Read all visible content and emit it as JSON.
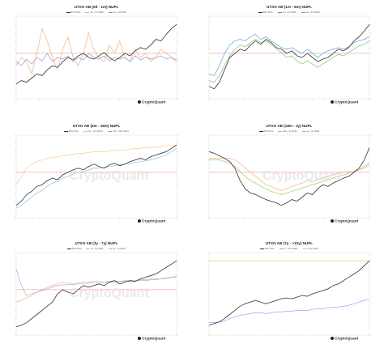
{
  "chart_data": [
    {
      "type": "line",
      "title": "UTXO AB (0d - 1m) NUPL",
      "legend": [
        "BTC Price",
        "0d - 1m NUPL",
        "1m - 1d NUPL"
      ],
      "series_colors": [
        "#333333",
        "#f4a460",
        "#8a7fd6"
      ],
      "ref_line": true,
      "watermark": false,
      "brand": "CryptoQuant",
      "series": [
        {
          "name": "BTC Price",
          "values": [
            0.18,
            0.22,
            0.2,
            0.25,
            0.3,
            0.28,
            0.35,
            0.4,
            0.38,
            0.45,
            0.5,
            0.47,
            0.52,
            0.55,
            0.5,
            0.48,
            0.52,
            0.56,
            0.5,
            0.46,
            0.5,
            0.55,
            0.52,
            0.58,
            0.62,
            0.6,
            0.65,
            0.72,
            0.7,
            0.78,
            0.85,
            0.9
          ]
        },
        {
          "name": "0d - 1m NUPL",
          "values": [
            0.4,
            0.5,
            0.45,
            0.3,
            0.55,
            0.85,
            0.7,
            0.5,
            0.35,
            0.6,
            0.75,
            0.5,
            0.4,
            0.55,
            0.8,
            0.6,
            0.5,
            0.45,
            0.65,
            0.55,
            0.7,
            0.5,
            0.45,
            0.6,
            0.5,
            0.55,
            0.45,
            0.5,
            0.6,
            0.55,
            0.5,
            0.45
          ]
        },
        {
          "name": "1m - 1d NUPL",
          "values": [
            0.45,
            0.4,
            0.48,
            0.42,
            0.5,
            0.46,
            0.55,
            0.45,
            0.5,
            0.48,
            0.52,
            0.45,
            0.5,
            0.47,
            0.55,
            0.5,
            0.48,
            0.52,
            0.46,
            0.5,
            0.48,
            0.5,
            0.45,
            0.52,
            0.47,
            0.5,
            0.48,
            0.5,
            0.52,
            0.48,
            0.5,
            0.47
          ]
        }
      ]
    },
    {
      "type": "line",
      "title": "UTXO AB (1m - 6m) NUPL",
      "legend": [
        "BTC Price",
        "1m - 3m NUPL",
        "3m - 6m NUPL"
      ],
      "series_colors": [
        "#333333",
        "#4a90d9",
        "#66bb6a"
      ],
      "ref_line": true,
      "watermark": false,
      "brand": "CryptoQuant",
      "series": [
        {
          "name": "BTC Price",
          "values": [
            0.15,
            0.12,
            0.2,
            0.35,
            0.5,
            0.55,
            0.6,
            0.58,
            0.65,
            0.7,
            0.66,
            0.72,
            0.68,
            0.62,
            0.6,
            0.55,
            0.58,
            0.52,
            0.5,
            0.55,
            0.5,
            0.45,
            0.48,
            0.5,
            0.55,
            0.6,
            0.58,
            0.62,
            0.7,
            0.75,
            0.82,
            0.9
          ]
        },
        {
          "name": "1m - 3m NUPL",
          "values": [
            0.3,
            0.28,
            0.4,
            0.55,
            0.65,
            0.7,
            0.72,
            0.7,
            0.75,
            0.78,
            0.72,
            0.75,
            0.7,
            0.66,
            0.62,
            0.6,
            0.62,
            0.58,
            0.55,
            0.6,
            0.55,
            0.5,
            0.55,
            0.58,
            0.6,
            0.62,
            0.6,
            0.63,
            0.68,
            0.7,
            0.72,
            0.75
          ]
        },
        {
          "name": "3m - 6m NUPL",
          "values": [
            0.22,
            0.2,
            0.28,
            0.4,
            0.52,
            0.6,
            0.65,
            0.63,
            0.68,
            0.72,
            0.68,
            0.7,
            0.66,
            0.6,
            0.56,
            0.5,
            0.52,
            0.46,
            0.42,
            0.46,
            0.42,
            0.38,
            0.42,
            0.46,
            0.5,
            0.54,
            0.52,
            0.56,
            0.6,
            0.64,
            0.66,
            0.7
          ]
        }
      ]
    },
    {
      "type": "line",
      "title": "UTXO AB (6m - 18m) NUPL",
      "legend": [
        "BTC Price",
        "6m - 12m NUPL",
        "12m - 18m NUPL"
      ],
      "series_colors": [
        "#333333",
        "#f6c27a",
        "#6fb6e8"
      ],
      "ref_line": true,
      "watermark": true,
      "brand": "CryptoQuant",
      "series": [
        {
          "name": "BTC Price",
          "values": [
            0.15,
            0.2,
            0.28,
            0.32,
            0.38,
            0.4,
            0.45,
            0.48,
            0.46,
            0.52,
            0.55,
            0.58,
            0.6,
            0.58,
            0.62,
            0.65,
            0.62,
            0.6,
            0.64,
            0.66,
            0.63,
            0.65,
            0.68,
            0.7,
            0.72,
            0.7,
            0.74,
            0.76,
            0.78,
            0.8,
            0.84,
            0.88
          ]
        },
        {
          "name": "6m - 12m NUPL",
          "values": [
            0.4,
            0.5,
            0.6,
            0.65,
            0.68,
            0.7,
            0.72,
            0.73,
            0.74,
            0.75,
            0.76,
            0.77,
            0.78,
            0.78,
            0.79,
            0.8,
            0.8,
            0.8,
            0.81,
            0.82,
            0.82,
            0.82,
            0.83,
            0.84,
            0.84,
            0.85,
            0.85,
            0.86,
            0.86,
            0.87,
            0.88,
            0.88
          ]
        },
        {
          "name": "12m - 18m NUPL",
          "values": [
            0.12,
            0.15,
            0.2,
            0.25,
            0.3,
            0.33,
            0.38,
            0.42,
            0.44,
            0.48,
            0.5,
            0.53,
            0.55,
            0.56,
            0.58,
            0.6,
            0.6,
            0.61,
            0.62,
            0.63,
            0.64,
            0.65,
            0.66,
            0.67,
            0.68,
            0.69,
            0.7,
            0.72,
            0.74,
            0.76,
            0.8,
            0.84
          ]
        }
      ]
    },
    {
      "type": "line",
      "title": "UTXO AB (18m - 3y) NUPL",
      "legend": [
        "BTC Price",
        "18m - 2y NUPL",
        "2y - 3y NUPL"
      ],
      "series_colors": [
        "#333333",
        "#f6a36d",
        "#8bc34a"
      ],
      "ref_line": true,
      "watermark": true,
      "brand": "CryptoQuant",
      "series": [
        {
          "name": "BTC Price",
          "values": [
            0.8,
            0.78,
            0.75,
            0.72,
            0.68,
            0.6,
            0.45,
            0.35,
            0.3,
            0.28,
            0.25,
            0.22,
            0.2,
            0.18,
            0.15,
            0.18,
            0.22,
            0.2,
            0.25,
            0.3,
            0.28,
            0.35,
            0.4,
            0.38,
            0.42,
            0.45,
            0.48,
            0.5,
            0.55,
            0.6,
            0.7,
            0.85
          ]
        },
        {
          "name": "18m - 2y NUPL",
          "values": [
            0.72,
            0.72,
            0.72,
            0.72,
            0.72,
            0.7,
            0.66,
            0.6,
            0.55,
            0.5,
            0.45,
            0.4,
            0.38,
            0.35,
            0.33,
            0.35,
            0.38,
            0.4,
            0.42,
            0.45,
            0.44,
            0.46,
            0.48,
            0.5,
            0.52,
            0.54,
            0.55,
            0.56,
            0.56,
            0.58,
            0.6,
            0.64
          ]
        },
        {
          "name": "2y - 3y NUPL",
          "values": [
            0.7,
            0.7,
            0.7,
            0.68,
            0.66,
            0.62,
            0.56,
            0.5,
            0.45,
            0.42,
            0.38,
            0.35,
            0.32,
            0.3,
            0.28,
            0.3,
            0.32,
            0.34,
            0.36,
            0.38,
            0.4,
            0.42,
            0.44,
            0.46,
            0.48,
            0.5,
            0.52,
            0.54,
            0.56,
            0.58,
            0.62,
            0.66
          ]
        }
      ]
    },
    {
      "type": "line",
      "title": "UTXO AB (3y - 7y) NUPL",
      "legend": [
        "BTC Price",
        "3y - 5y NUPL",
        "5y - 7y NUPL"
      ],
      "series_colors": [
        "#333333",
        "#f5a15e",
        "#9aa8e6"
      ],
      "ref_line": true,
      "watermark": true,
      "brand": "CryptoQuant",
      "series": [
        {
          "name": "BTC Price",
          "values": [
            0.1,
            0.12,
            0.15,
            0.2,
            0.25,
            0.3,
            0.35,
            0.4,
            0.5,
            0.55,
            0.52,
            0.5,
            0.55,
            0.6,
            0.58,
            0.6,
            0.62,
            0.6,
            0.64,
            0.66,
            0.62,
            0.64,
            0.66,
            0.65,
            0.68,
            0.7,
            0.72,
            0.74,
            0.78,
            0.82,
            0.86,
            0.9
          ]
        },
        {
          "name": "3y - 5y NUPL",
          "values": [
            0.4,
            0.42,
            0.45,
            0.48,
            0.52,
            0.55,
            0.58,
            0.6,
            0.62,
            0.64,
            0.63,
            0.62,
            0.63,
            0.64,
            0.64,
            0.65,
            0.65,
            0.64,
            0.65,
            0.66,
            0.65,
            0.66,
            0.66,
            0.66,
            0.67,
            0.67,
            0.68,
            0.68,
            0.68,
            0.7,
            0.7,
            0.7
          ]
        },
        {
          "name": "5y - 7y NUPL",
          "values": [
            0.8,
            0.6,
            0.48,
            0.5,
            0.52,
            0.54,
            0.56,
            0.58,
            0.6,
            0.61,
            0.61,
            0.61,
            0.62,
            0.62,
            0.63,
            0.63,
            0.63,
            0.64,
            0.64,
            0.64,
            0.65,
            0.65,
            0.65,
            0.66,
            0.66,
            0.66,
            0.67,
            0.67,
            0.68,
            0.68,
            0.7,
            0.72
          ]
        }
      ]
    },
    {
      "type": "line",
      "title": "UTXO AB (7y - >10y) NUPL",
      "legend": [
        "BTC Price",
        "7y - 10y NUPL",
        ">10y NUPL"
      ],
      "series_colors": [
        "#333333",
        "#9c8fe0",
        "#e6c24d"
      ],
      "ref_line": false,
      "watermark": false,
      "brand": "CryptoQuant",
      "series": [
        {
          "name": "BTC Price",
          "values": [
            0.12,
            0.14,
            0.16,
            0.2,
            0.25,
            0.3,
            0.35,
            0.38,
            0.4,
            0.42,
            0.4,
            0.38,
            0.4,
            0.42,
            0.44,
            0.45,
            0.44,
            0.46,
            0.48,
            0.47,
            0.5,
            0.52,
            0.54,
            0.56,
            0.6,
            0.62,
            0.66,
            0.7,
            0.74,
            0.78,
            0.84,
            0.9
          ]
        },
        {
          "name": "7y - 10y NUPL",
          "values": [
            0.15,
            0.15,
            0.16,
            0.17,
            0.2,
            0.22,
            0.24,
            0.25,
            0.26,
            0.27,
            0.27,
            0.26,
            0.27,
            0.28,
            0.28,
            0.29,
            0.29,
            0.3,
            0.3,
            0.3,
            0.31,
            0.32,
            0.32,
            0.33,
            0.34,
            0.34,
            0.35,
            0.36,
            0.38,
            0.4,
            0.42,
            0.44
          ]
        },
        {
          "name": ">10y NUPL",
          "values": [
            0.9,
            0.9,
            0.9,
            0.9,
            0.9,
            0.9,
            0.9,
            0.9,
            0.9,
            0.9,
            0.9,
            0.9,
            0.9,
            0.9,
            0.9,
            0.9,
            0.9,
            0.9,
            0.9,
            0.9,
            0.9,
            0.9,
            0.9,
            0.9,
            0.9,
            0.9,
            0.9,
            0.9,
            0.9,
            0.9,
            0.9,
            0.9
          ]
        }
      ]
    }
  ]
}
